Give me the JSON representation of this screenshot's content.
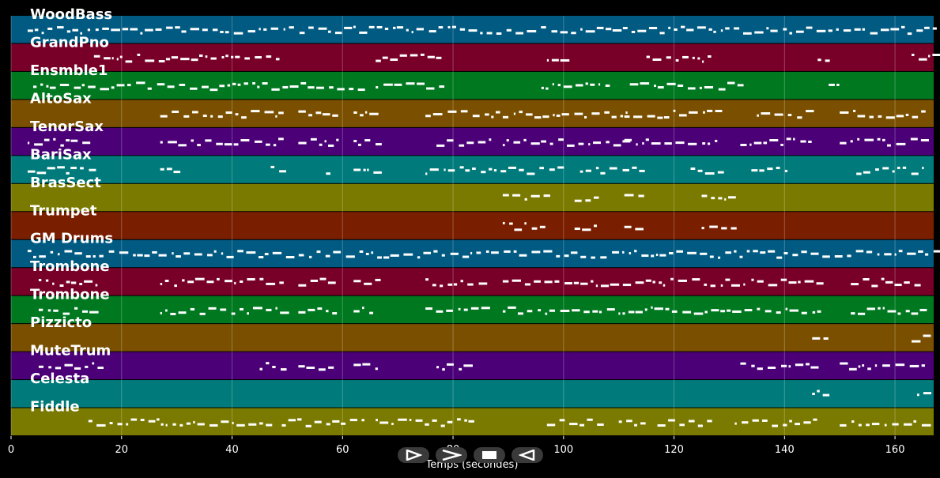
{
  "player": {
    "xlabel": "Temps (secondes)",
    "xlim": [
      0,
      167
    ],
    "ticks": [
      0,
      20,
      40,
      60,
      80,
      100,
      120,
      140,
      160
    ],
    "tick_labels": [
      "0",
      "20",
      "40",
      "60",
      "80",
      "100",
      "120",
      "140",
      "160"
    ],
    "grid": true,
    "note_color": "#ffffff",
    "background": "#000000"
  },
  "tracks": [
    {
      "name": "WoodBass",
      "color": "#005a82"
    },
    {
      "name": "GrandPno",
      "color": "#780028"
    },
    {
      "name": "Ensmble1",
      "color": "#007820"
    },
    {
      "name": "AltoSax",
      "color": "#7a5000"
    },
    {
      "name": "TenorSax",
      "color": "#4b0078"
    },
    {
      "name": "BariSax",
      "color": "#007a7a"
    },
    {
      "name": "BrasSect",
      "color": "#7a7a00"
    },
    {
      "name": "Trumpet",
      "color": "#7a1e00"
    },
    {
      "name": "GM Drums",
      "color": "#005a82"
    },
    {
      "name": "Trombone",
      "color": "#780028"
    },
    {
      "name": "Trombone",
      "color": "#007820"
    },
    {
      "name": "Pizzicto",
      "color": "#7a5000"
    },
    {
      "name": "MuteTrum",
      "color": "#4b0078"
    },
    {
      "name": "Celesta",
      "color": "#007a7a"
    },
    {
      "name": "Fiddle",
      "color": "#7a7a00"
    }
  ],
  "controls": [
    {
      "name": "play-icon",
      "icon": "play"
    },
    {
      "name": "fast-forward-icon",
      "icon": "fast-forward"
    },
    {
      "name": "stop-icon",
      "icon": "stop"
    },
    {
      "name": "rewind-icon",
      "icon": "rewind"
    }
  ]
}
